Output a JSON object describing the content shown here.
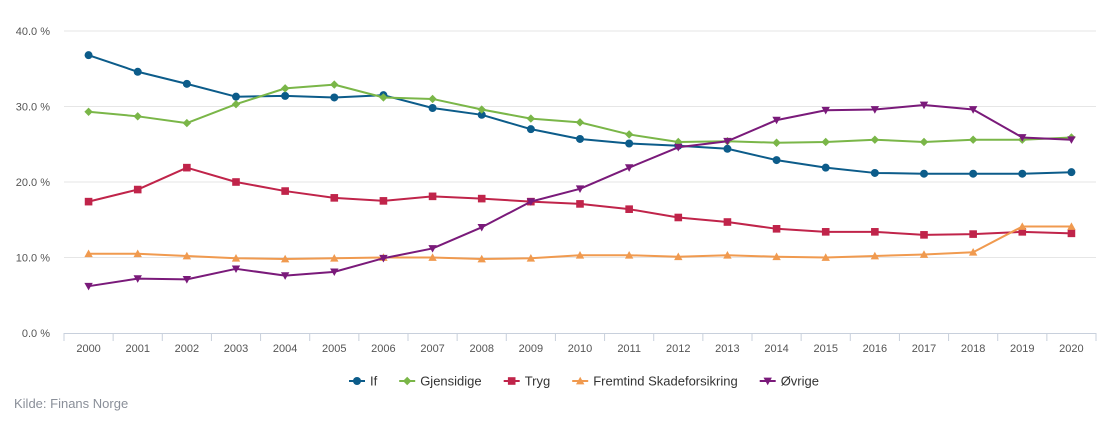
{
  "chart_data": {
    "type": "line",
    "title": "",
    "xlabel": "",
    "ylabel": "",
    "x": [
      "2000",
      "2001",
      "2002",
      "2003",
      "2004",
      "2005",
      "2006",
      "2007",
      "2008",
      "2009",
      "2010",
      "2011",
      "2012",
      "2013",
      "2014",
      "2015",
      "2016",
      "2017",
      "2018",
      "2019",
      "2020"
    ],
    "ylim": [
      0,
      40
    ],
    "yticks": [
      {
        "value": 0,
        "label": "0.0 %"
      },
      {
        "value": 10,
        "label": "10.0 %"
      },
      {
        "value": 20,
        "label": "20.0 %"
      },
      {
        "value": 30,
        "label": "30.0 %"
      },
      {
        "value": 40,
        "label": "40.0 %"
      }
    ],
    "grid": true,
    "legend_position": "bottom-center",
    "series": [
      {
        "name": "If",
        "color": "#0c5c8a",
        "marker": "circle",
        "values": [
          36.8,
          34.6,
          33.0,
          31.3,
          31.4,
          31.2,
          31.5,
          29.8,
          28.9,
          27.0,
          25.7,
          25.1,
          24.8,
          24.4,
          22.9,
          21.9,
          21.2,
          21.1,
          21.1,
          21.1,
          21.3
        ]
      },
      {
        "name": "Gjensidige",
        "color": "#7ab648",
        "marker": "diamond",
        "values": [
          29.3,
          28.7,
          27.8,
          30.3,
          32.4,
          32.9,
          31.2,
          31.0,
          29.6,
          28.4,
          27.9,
          26.3,
          25.3,
          25.4,
          25.2,
          25.3,
          25.6,
          25.3,
          25.6,
          25.6,
          25.9
        ]
      },
      {
        "name": "Tryg",
        "color": "#c0244a",
        "marker": "square",
        "values": [
          17.4,
          19.0,
          21.9,
          20.0,
          18.8,
          17.9,
          17.5,
          18.1,
          17.8,
          17.4,
          17.1,
          16.4,
          15.3,
          14.7,
          13.8,
          13.4,
          13.4,
          13.0,
          13.1,
          13.4,
          13.2
        ]
      },
      {
        "name": "Fremtind Skadeforsikring",
        "color": "#f09a4f",
        "marker": "triangle",
        "values": [
          10.5,
          10.5,
          10.2,
          9.9,
          9.8,
          9.9,
          10.0,
          10.0,
          9.8,
          9.9,
          10.3,
          10.3,
          10.1,
          10.3,
          10.1,
          10.0,
          10.2,
          10.4,
          10.7,
          14.1,
          14.1
        ]
      },
      {
        "name": "Øvrige",
        "color": "#7a1a7a",
        "marker": "triangle-down",
        "values": [
          6.2,
          7.2,
          7.1,
          8.5,
          7.6,
          8.1,
          9.9,
          11.2,
          14.0,
          17.4,
          19.1,
          21.9,
          24.6,
          25.4,
          28.2,
          29.5,
          29.6,
          30.2,
          29.6,
          25.9,
          25.6
        ]
      }
    ]
  },
  "source": "Kilde: Finans Norge"
}
